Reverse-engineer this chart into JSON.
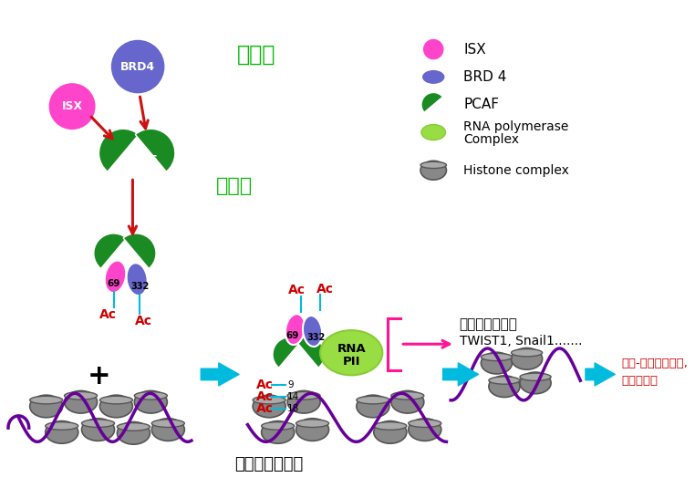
{
  "bg_color": "#ffffff",
  "cytoplasm_label": "細胞質",
  "nucleus_label": "細胞核",
  "chromatin_label": "染色質構形重塑",
  "cancer_gene_label1": "癌細胞轉移基因",
  "cancer_gene_label2": "TWIST1, Snail1.......",
  "emt_label1": "上皮-間質特性轉化,",
  "emt_label2": "癌細胞轉移",
  "legend_items": [
    "ISX",
    "BRD 4",
    "PCAF",
    "RNA polymerase\nComplex",
    "Histone complex"
  ],
  "isx_color": "#FF44CC",
  "brd4_color": "#6666CC",
  "pcaf_color": "#1A8A22",
  "rna_pol_color": "#99DD44",
  "histone_color": "#888888",
  "histone_light": "#AAAAAA",
  "histone_dark": "#555555",
  "dna_color": "#660099",
  "arrow_red": "#CC1111",
  "ac_color": "#CC0000",
  "cyan_color": "#00BBDD",
  "pink_color": "#FF1493",
  "green_label": "#00BB00",
  "red_label": "#CC0000",
  "nuc_membrane_color": "#5566CC"
}
